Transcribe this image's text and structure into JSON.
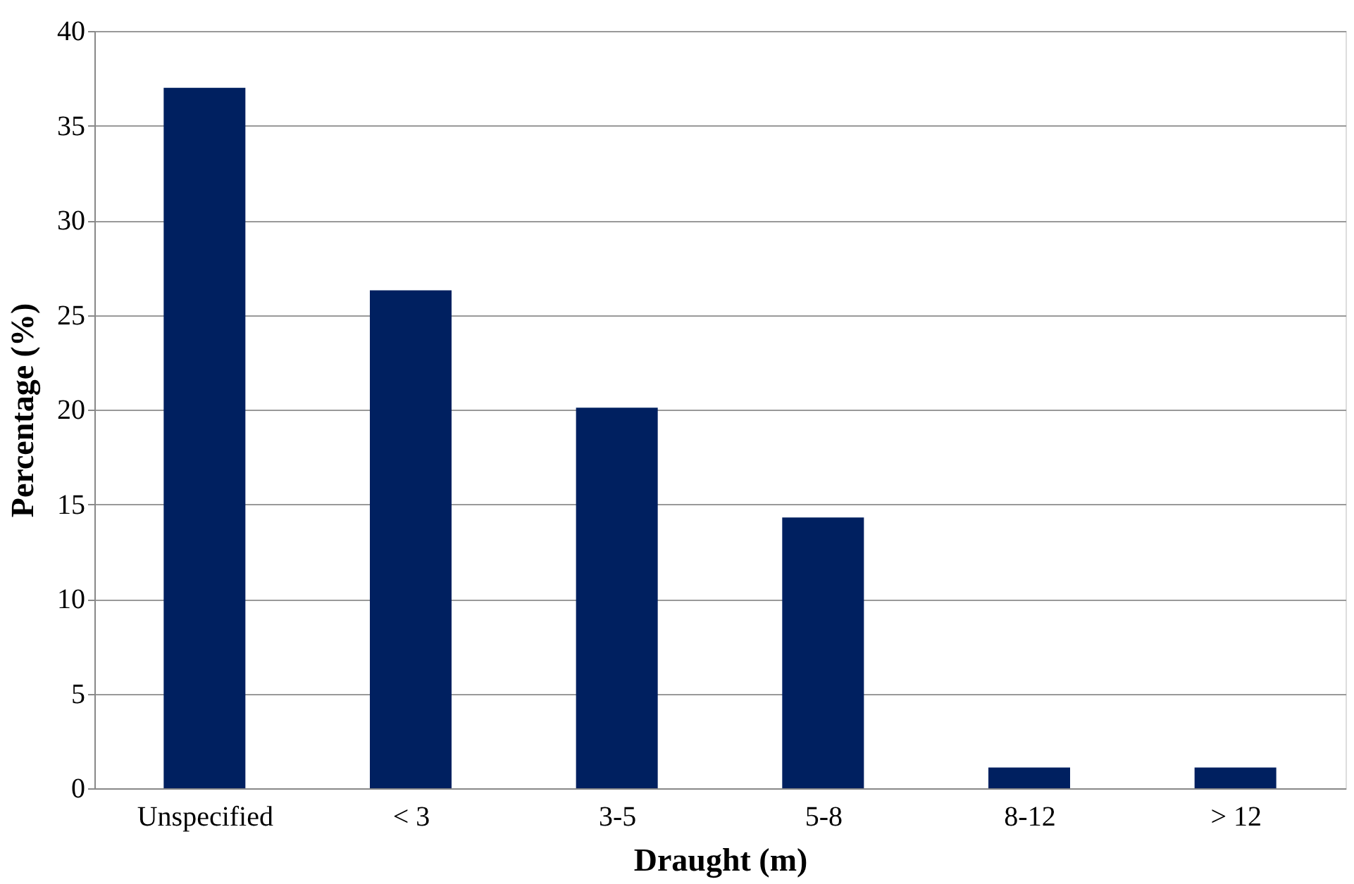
{
  "chart_data": {
    "type": "bar",
    "xlabel": "Draught (m)",
    "ylabel": "Percentage (%)",
    "categories": [
      "Unspecified",
      "< 3",
      "3-5",
      "5-8",
      "8-12",
      "> 12"
    ],
    "values": [
      37,
      26.3,
      20.1,
      14.3,
      1.1,
      1.1
    ],
    "color": "#002060",
    "ylim": [
      0,
      40
    ],
    "yticks": [
      0,
      5,
      10,
      15,
      20,
      25,
      30,
      35,
      40
    ],
    "grid": "y"
  }
}
